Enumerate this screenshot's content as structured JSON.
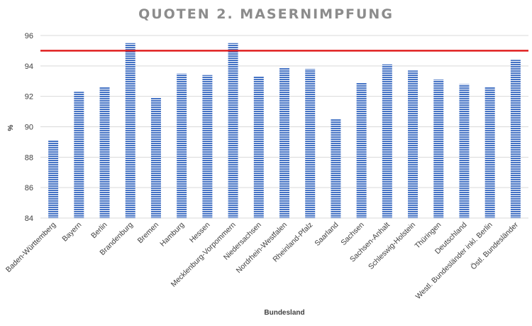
{
  "chart_data": {
    "type": "bar",
    "title": "QUOTEN 2. MASERNIMPFUNG",
    "xlabel": "Bundesland",
    "ylabel": "%",
    "ylim": [
      84,
      96
    ],
    "yticks": [
      84,
      86,
      88,
      90,
      92,
      94,
      96
    ],
    "grid": true,
    "legend": "none",
    "categories": [
      "Baden-Württemberg",
      "Bayern",
      "Berlin",
      "Brandenburg",
      "Bremen",
      "Hamburg",
      "Hessen",
      "Mecklenburg-Vorpommern",
      "Niedersachsen",
      "Nordrhein-Westfalen",
      "Rheinland-Pfalz",
      "Saarland",
      "Sachsen",
      "Sachsen-Anhalt",
      "Schleswig-Holstein",
      "Thüringen",
      "Deutschland",
      "Westl. Bundesländer inkl. Berlin",
      "Östl. Bundesländer"
    ],
    "values": [
      89.1,
      92.3,
      92.6,
      95.5,
      91.9,
      93.5,
      93.4,
      95.5,
      93.3,
      93.9,
      93.8,
      90.5,
      92.9,
      94.1,
      93.7,
      93.1,
      92.8,
      92.6,
      94.4
    ],
    "reference_line": {
      "value": 95,
      "color": "#e02020"
    },
    "colors": {
      "bar": "#4472c4",
      "bar_stripe": "#ffffff",
      "grid": "#d9d9d9",
      "title": "#8c8c8c"
    }
  }
}
